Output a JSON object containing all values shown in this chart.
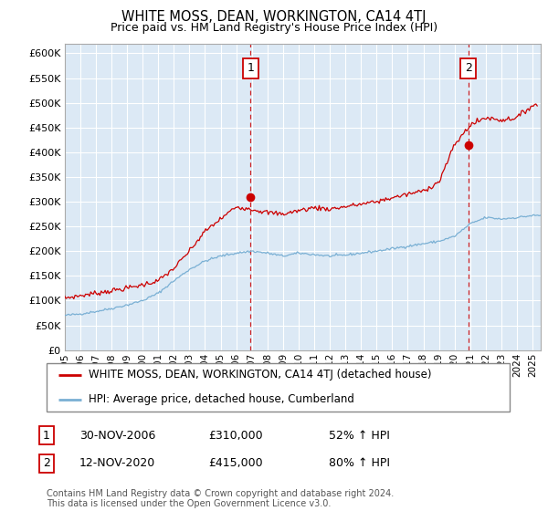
{
  "title": "WHITE MOSS, DEAN, WORKINGTON, CA14 4TJ",
  "subtitle": "Price paid vs. HM Land Registry's House Price Index (HPI)",
  "legend_line1": "WHITE MOSS, DEAN, WORKINGTON, CA14 4TJ (detached house)",
  "legend_line2": "HPI: Average price, detached house, Cumberland",
  "annotation1_date": "30-NOV-2006",
  "annotation1_price": "£310,000",
  "annotation1_hpi": "52% ↑ HPI",
  "annotation2_date": "12-NOV-2020",
  "annotation2_price": "£415,000",
  "annotation2_hpi": "80% ↑ HPI",
  "footer": "Contains HM Land Registry data © Crown copyright and database right 2024.\nThis data is licensed under the Open Government Licence v3.0.",
  "red_color": "#cc0000",
  "blue_color": "#7ab0d4",
  "bg_color": "#dce9f5",
  "grid_color": "#ffffff",
  "vline_color": "#cc0000",
  "ylim": [
    0,
    620000
  ],
  "yticks": [
    0,
    50000,
    100000,
    150000,
    200000,
    250000,
    300000,
    350000,
    400000,
    450000,
    500000,
    550000,
    600000
  ],
  "sale1_x": 2006.92,
  "sale1_y": 310000,
  "sale2_x": 2020.88,
  "sale2_y": 415000,
  "xmin": 1995.0,
  "xmax": 2025.5,
  "red_anchors": {
    "1995": 105000,
    "1996": 110000,
    "1997": 115000,
    "1998": 120000,
    "1999": 125000,
    "2000": 132000,
    "2001": 140000,
    "2002": 165000,
    "2003": 200000,
    "2004": 240000,
    "2005": 265000,
    "2006": 290000,
    "2007": 285000,
    "2008": 278000,
    "2009": 275000,
    "2010": 282000,
    "2011": 288000,
    "2012": 285000,
    "2013": 290000,
    "2014": 295000,
    "2015": 300000,
    "2016": 308000,
    "2017": 315000,
    "2018": 322000,
    "2019": 340000,
    "2020": 415000,
    "2021": 455000,
    "2022": 470000,
    "2023": 465000,
    "2024": 470000,
    "2025": 495000
  },
  "hpi_anchors": {
    "1995": 70000,
    "1996": 73000,
    "1997": 78000,
    "1998": 84000,
    "1999": 91000,
    "2000": 100000,
    "2001": 115000,
    "2002": 140000,
    "2003": 163000,
    "2004": 180000,
    "2005": 190000,
    "2006": 196000,
    "2007": 200000,
    "2008": 196000,
    "2009": 190000,
    "2010": 196000,
    "2011": 193000,
    "2012": 190000,
    "2013": 192000,
    "2014": 196000,
    "2015": 200000,
    "2016": 205000,
    "2017": 210000,
    "2018": 215000,
    "2019": 220000,
    "2020": 230000,
    "2021": 255000,
    "2022": 268000,
    "2023": 265000,
    "2024": 268000,
    "2025": 272000
  }
}
